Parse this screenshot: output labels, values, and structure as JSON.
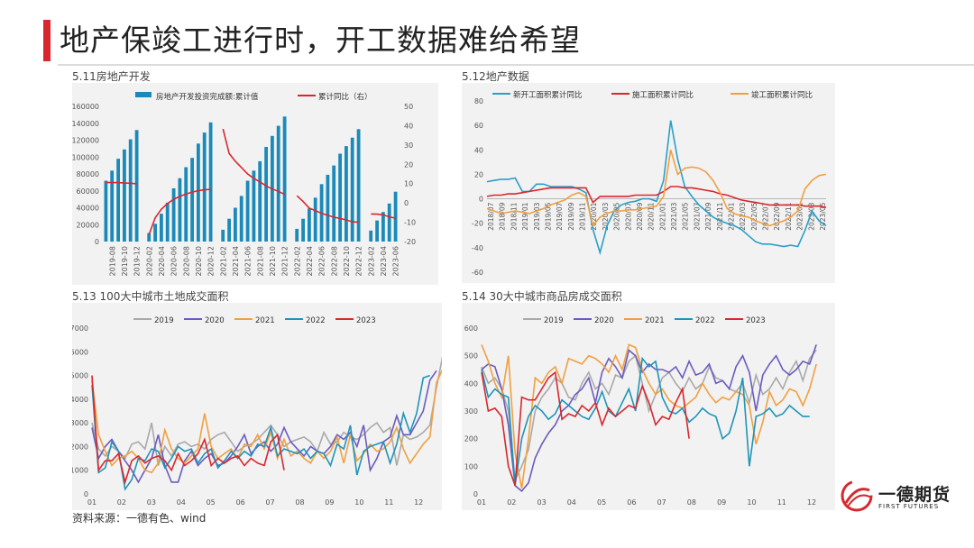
{
  "page": {
    "title": "地产保竣工进行时，开工数据难给希望",
    "source": "资料来源：一德有色、wind",
    "logo": {
      "brand": "一德期货",
      "sub": "FIRST FUTURES"
    }
  },
  "colors": {
    "accent": "#d9272e",
    "bar": "#1b8ab8",
    "red": "#d9272e",
    "teal": "#2b9fc9",
    "orange": "#f0a040",
    "gray": "#a9a9a9",
    "purple": "#6b5bbf",
    "blue": "#1f94b8"
  },
  "chart_data": [
    {
      "id": "c1",
      "type": "bar",
      "caption": "5.11房地产开发",
      "x_ticks": [
        "2019-08",
        "2019-10",
        "2019-12",
        "2020-02",
        "2020-04",
        "2020-06",
        "2020-08",
        "2020-10",
        "2020-12",
        "2021-02",
        "2021-04",
        "2021-06",
        "2021-08",
        "2021-10",
        "2021-12",
        "2022-02",
        "2022-04",
        "2022-06",
        "2022-08",
        "2022-10",
        "2022-12",
        "2023-02",
        "2023-04",
        "2023-06"
      ],
      "categories": [
        "2019-07",
        "2019-08",
        "2019-09",
        "2019-10",
        "2019-11",
        "2019-12",
        "2020-01",
        "2020-02",
        "2020-03",
        "2020-04",
        "2020-05",
        "2020-06",
        "2020-07",
        "2020-08",
        "2020-09",
        "2020-10",
        "2020-11",
        "2020-12",
        "2021-01",
        "2021-02",
        "2021-03",
        "2021-04",
        "2021-05",
        "2021-06",
        "2021-07",
        "2021-08",
        "2021-09",
        "2021-10",
        "2021-11",
        "2021-12",
        "2022-01",
        "2022-02",
        "2022-03",
        "2022-04",
        "2022-05",
        "2022-06",
        "2022-07",
        "2022-08",
        "2022-09",
        "2022-10",
        "2022-11",
        "2022-12",
        "2023-01",
        "2023-02",
        "2023-03",
        "2023-04",
        "2023-05",
        "2023-06"
      ],
      "series": [
        {
          "name": "房地产开发投资完成额:累计值",
          "type": "bar",
          "axis": "left",
          "values": [
            72000,
            84000,
            98000,
            109000,
            121000,
            132000,
            null,
            10000,
            21000,
            33000,
            46000,
            63000,
            75000,
            88000,
            99000,
            116000,
            129000,
            141000,
            null,
            14000,
            27000,
            40000,
            54000,
            72000,
            84000,
            95000,
            112000,
            125000,
            137000,
            148000,
            null,
            15000,
            27000,
            39000,
            52000,
            68000,
            79000,
            90000,
            104000,
            113000,
            123000,
            133000,
            null,
            13000,
            25000,
            35000,
            45000,
            59000
          ]
        },
        {
          "name": "累计同比（右）",
          "type": "line",
          "axis": "right",
          "values": [
            10.6,
            10.5,
            10.5,
            10.3,
            10.2,
            9.9,
            null,
            -16.3,
            -7.7,
            -3.3,
            -0.3,
            1.9,
            3.4,
            4.6,
            5.6,
            6.3,
            6.8,
            7.0,
            null,
            38.3,
            25.6,
            21.6,
            18.3,
            15.0,
            12.7,
            10.9,
            8.8,
            7.2,
            6.0,
            4.4,
            null,
            3.7,
            0.7,
            -2.7,
            -4.0,
            -5.4,
            -6.4,
            -7.4,
            -8.0,
            -8.8,
            -9.8,
            -10.0,
            null,
            -5.7,
            -5.8,
            -6.2,
            -7.2,
            -7.9
          ]
        }
      ],
      "y_left": {
        "min": 0,
        "max": 160000,
        "ticks": [
          "0",
          "20000",
          "40000",
          "60000",
          "80000",
          "100000",
          "120000",
          "140000",
          "160000"
        ]
      },
      "y_right": {
        "min": -20,
        "max": 50,
        "ticks": [
          "-20",
          "-10",
          "0",
          "10",
          "20",
          "30",
          "40",
          "50"
        ]
      }
    },
    {
      "id": "c2",
      "type": "line",
      "caption": "5.12地产数据",
      "x_ticks": [
        "2018/07",
        "2018/09",
        "2018/11",
        "2019/01",
        "2019/03",
        "2019/05",
        "2019/07",
        "2019/09",
        "2019/11",
        "2020/01",
        "2020/03",
        "2020/05",
        "2020/07",
        "2020/09",
        "2020/11",
        "2021/01",
        "2021/03",
        "2021/05",
        "2021/07",
        "2021/09",
        "2021/11",
        "2022/01",
        "2022/03",
        "2022/05",
        "2022/07",
        "2022/09",
        "2022/11",
        "2023/01",
        "2023/03",
        "2023/05"
      ],
      "ylim": [
        -60,
        80
      ],
      "y_ticks": [
        "80",
        "60",
        "40",
        "20",
        "0",
        "-20",
        "-40",
        "-60"
      ],
      "series": [
        {
          "name": "新开工面积累计同比",
          "color": "#2b9fc9",
          "values": [
            14,
            15,
            16,
            16,
            17,
            6,
            6,
            12,
            12,
            10,
            10,
            10,
            10,
            8,
            5,
            -25,
            -44,
            -22,
            -10,
            -5,
            -3,
            -2,
            0,
            0,
            -2,
            15,
            64,
            32,
            10,
            2,
            -5,
            -10,
            -15,
            -18,
            -20,
            -22,
            -25,
            -30,
            -35,
            -37,
            -37,
            -38,
            -39,
            -38,
            -39,
            -26,
            -10,
            -18,
            -22
          ]
        },
        {
          "name": "施工面积累计同比",
          "color": "#d9272e",
          "values": [
            2,
            3,
            3,
            4,
            4,
            5,
            6,
            7,
            8,
            9,
            9,
            9,
            9,
            9,
            9,
            -3,
            2,
            2,
            2,
            2,
            2,
            3,
            3,
            3,
            3,
            6,
            10,
            10,
            9,
            9,
            8,
            7,
            6,
            4,
            3,
            1,
            -1,
            -2,
            -3,
            -4,
            -5,
            -5,
            -5,
            -5,
            -5,
            -6,
            -6,
            -6,
            -7
          ]
        },
        {
          "name": "竣工面积累计同比",
          "color": "#f0a040",
          "values": [
            -8,
            -10,
            -12,
            -11,
            -10,
            -11,
            -12,
            -10,
            -8,
            -5,
            -3,
            -1,
            3,
            5,
            2,
            -22,
            -15,
            -12,
            -10,
            -10,
            -9,
            -9,
            -8,
            -7,
            -6,
            2,
            40,
            20,
            25,
            26,
            25,
            22,
            15,
            5,
            -8,
            -12,
            -14,
            -15,
            -18,
            -20,
            -22,
            -20,
            -18,
            -15,
            -10,
            8,
            15,
            19,
            20
          ]
        }
      ]
    },
    {
      "id": "c3",
      "type": "line",
      "caption": "5.13 100大中城市土地成交面积",
      "x_ticks": [
        "01",
        "02",
        "03",
        "04",
        "05",
        "06",
        "07",
        "08",
        "09",
        "10",
        "11",
        "12"
      ],
      "ylim": [
        0,
        7000
      ],
      "y_ticks": [
        "7000",
        "6000",
        "5000",
        "4000",
        "3000",
        "2000",
        "1000",
        "0"
      ],
      "series": [
        {
          "name": "2019",
          "color": "#a9a9a9",
          "values": [
            3000,
            1900,
            1600,
            2000,
            1800,
            1500,
            2100,
            2200,
            1900,
            3000,
            1200,
            2000,
            1600,
            2100,
            2200,
            2000,
            2100,
            1900,
            2300,
            2500,
            2600,
            2200,
            1800,
            2000,
            2100,
            2300,
            2600,
            2900,
            2500,
            2000,
            2200,
            2300,
            2400,
            2200,
            1800,
            2600,
            2100,
            2200,
            2600,
            2400,
            2300,
            2500,
            2800,
            3000,
            2600,
            2800,
            1200,
            2500,
            2300,
            2400,
            2600,
            2900,
            4500,
            5900
          ]
        },
        {
          "name": "2020",
          "color": "#6b5bbf",
          "values": [
            2800,
            1500,
            2000,
            2300,
            1800,
            1400,
            1000,
            500,
            1000,
            1500,
            2500,
            1200,
            500,
            500,
            1400,
            1800,
            1200,
            1500,
            1700,
            1200,
            1300,
            1600,
            2000,
            2500,
            1700,
            2000,
            2200,
            1800,
            2100,
            2800,
            2200,
            1900,
            1600,
            2000,
            1800,
            1700,
            2000,
            2500,
            2300,
            2600,
            2000,
            2900,
            1000,
            1500,
            2200,
            2400,
            3300,
            2500,
            2500,
            3000,
            3500,
            4800,
            5200
          ]
        },
        {
          "name": "2021",
          "color": "#f0a040",
          "values": [
            4800,
            2500,
            1800,
            1200,
            1500,
            1600,
            1800,
            1500,
            1000,
            900,
            1300,
            2700,
            1900,
            1500,
            1300,
            1600,
            1900,
            3400,
            2000,
            1500,
            1700,
            1900,
            1500,
            2100,
            2000,
            2500,
            1900,
            2600,
            1500,
            2300,
            1600,
            1800,
            1500,
            1300,
            1800,
            1500,
            1800,
            2400,
            1300,
            2500,
            1400,
            1700,
            2100,
            1800,
            1900,
            2200,
            2800,
            1900,
            1300,
            1700,
            2100,
            2400,
            4700,
            5300
          ]
        },
        {
          "name": "2022",
          "color": "#1f94b8",
          "values": [
            4600,
            900,
            1100,
            2200,
            1800,
            200,
            600,
            1500,
            1400,
            1900,
            1800,
            1100,
            1500,
            2000,
            1800,
            1900,
            1300,
            1700,
            1900,
            1100,
            1400,
            1800,
            1500,
            1800,
            1600,
            2100,
            2000,
            2800,
            1600,
            1900,
            1800,
            1700,
            1900,
            1500,
            1800,
            1700,
            1200,
            2100,
            1900,
            2900,
            800,
            1800,
            2000,
            2100,
            2200,
            1300,
            2100,
            3400,
            2600,
            3400,
            4900,
            5000
          ]
        },
        {
          "name": "2023",
          "color": "#d9272e",
          "values": [
            5000,
            1000,
            1400,
            1400,
            1700,
            500,
            1400,
            1600,
            1300,
            1500,
            1600,
            1400,
            1000,
            1700,
            1200,
            1400,
            1700,
            2300,
            1200,
            1500,
            1300,
            1500,
            1600,
            1200,
            1500,
            1300,
            1200,
            2200,
            2500,
            1000
          ]
        }
      ]
    },
    {
      "id": "c4",
      "type": "line",
      "caption": "5.14 30大中城市商品房成交面积",
      "x_ticks": [
        "01",
        "02",
        "03",
        "04",
        "05",
        "06",
        "07",
        "08",
        "09",
        "10",
        "11",
        "12"
      ],
      "ylim": [
        0,
        600
      ],
      "y_ticks": [
        "600",
        "500",
        "400",
        "300",
        "200",
        "100",
        "0"
      ],
      "series": [
        {
          "name": "2019",
          "color": "#a9a9a9",
          "values": [
            460,
            400,
            420,
            380,
            300,
            50,
            100,
            160,
            300,
            350,
            380,
            420,
            400,
            350,
            340,
            400,
            440,
            380,
            400,
            360,
            430,
            420,
            480,
            500,
            400,
            300,
            360,
            420,
            440,
            400,
            370,
            420,
            380,
            400,
            460,
            420,
            410,
            380,
            370,
            400,
            330,
            430,
            360,
            380,
            420,
            380,
            440,
            480,
            410,
            490,
            520
          ]
        },
        {
          "name": "2020",
          "color": "#6b5bbf",
          "values": [
            450,
            470,
            460,
            380,
            250,
            30,
            10,
            40,
            130,
            180,
            220,
            250,
            300,
            320,
            360,
            380,
            420,
            330,
            440,
            490,
            460,
            420,
            520,
            500,
            440,
            470,
            450,
            450,
            440,
            460,
            420,
            480,
            430,
            440,
            470,
            400,
            410,
            380,
            460,
            500,
            440,
            300,
            430,
            470,
            500,
            450,
            430,
            450,
            480,
            470,
            540
          ]
        },
        {
          "name": "2021",
          "color": "#f0a040",
          "values": [
            540,
            480,
            400,
            350,
            500,
            150,
            20,
            200,
            420,
            400,
            440,
            460,
            400,
            490,
            480,
            470,
            500,
            490,
            470,
            440,
            500,
            450,
            540,
            530,
            450,
            400,
            360,
            380,
            340,
            320,
            310,
            330,
            350,
            400,
            360,
            330,
            350,
            340,
            370,
            360,
            320,
            180,
            260,
            370,
            320,
            340,
            380,
            370,
            320,
            380,
            470
          ]
        },
        {
          "name": "2022",
          "color": "#1f94b8",
          "values": [
            450,
            350,
            380,
            360,
            350,
            30,
            200,
            280,
            320,
            300,
            270,
            290,
            340,
            320,
            300,
            280,
            270,
            310,
            370,
            300,
            280,
            330,
            380,
            300,
            490,
            460,
            480,
            350,
            300,
            290,
            310,
            260,
            280,
            310,
            290,
            280,
            200,
            220,
            300,
            420,
            100,
            280,
            290,
            310,
            280,
            290,
            320,
            300,
            280,
            280
          ]
        },
        {
          "name": "2023",
          "color": "#d9272e",
          "values": [
            440,
            300,
            310,
            280,
            100,
            30,
            350,
            340,
            340,
            380,
            420,
            440,
            270,
            290,
            280,
            320,
            300,
            330,
            250,
            310,
            280,
            300,
            320,
            310,
            390,
            330,
            250,
            280,
            270,
            330,
            380,
            200
          ]
        }
      ]
    }
  ]
}
